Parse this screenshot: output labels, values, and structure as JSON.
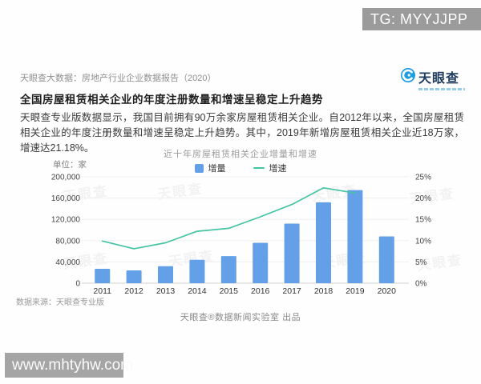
{
  "badge": {
    "text": "TG: MYYJJPP"
  },
  "header": {
    "report_label": "天眼查大数据：房地产行业企业数据报告（2020）",
    "logo_text": "天眼查"
  },
  "article": {
    "headline": "全国房屋租赁相关企业的年度注册数量和增速呈稳定上升趋势",
    "body": "天眼查专业版数据显示，我国目前拥有90万余家房屋租赁相关企业。自2012年以来，全国房屋租赁相关企业的年度注册数量和增速呈稳定上升趋势。其中，2019年新增房屋租赁相关企业近18万家，增速达21.18%。"
  },
  "chart_data": {
    "type": "bar+line",
    "title": "近十年房屋租赁相关企业增量和增速",
    "unit_label": "单位：家",
    "legend_position": "top",
    "grid": true,
    "categories": [
      "2011",
      "2012",
      "2013",
      "2014",
      "2015",
      "2016",
      "2017",
      "2018",
      "2019",
      "2020"
    ],
    "series": [
      {
        "name": "增量",
        "type": "bar",
        "axis": "left",
        "color": "#63a0e8",
        "values": [
          27000,
          24000,
          32000,
          44000,
          51000,
          76000,
          112000,
          152000,
          175000,
          88000
        ]
      },
      {
        "name": "增速",
        "type": "line",
        "axis": "right",
        "color": "#45c4a4",
        "values": [
          9.9,
          8.1,
          9.5,
          12.2,
          12.9,
          15.6,
          18.5,
          22.4,
          21.18,
          null
        ]
      }
    ],
    "left_axis": {
      "min": 0,
      "max": 200000,
      "step": 40000,
      "tick_labels": [
        "0",
        "40,000",
        "80,000",
        "120,000",
        "160,000",
        "200,000"
      ]
    },
    "right_axis": {
      "min": 0,
      "max": 25,
      "step": 5,
      "tick_labels": [
        "0%",
        "5%",
        "10%",
        "15%",
        "20%",
        "25%"
      ]
    }
  },
  "footer": {
    "source": "数据来源：天眼查专业版",
    "credit": "天眼查®数据新闻实验室 出品"
  },
  "watermarks": {
    "site": "www.mhtyhw.com",
    "chart": "天眼查"
  }
}
